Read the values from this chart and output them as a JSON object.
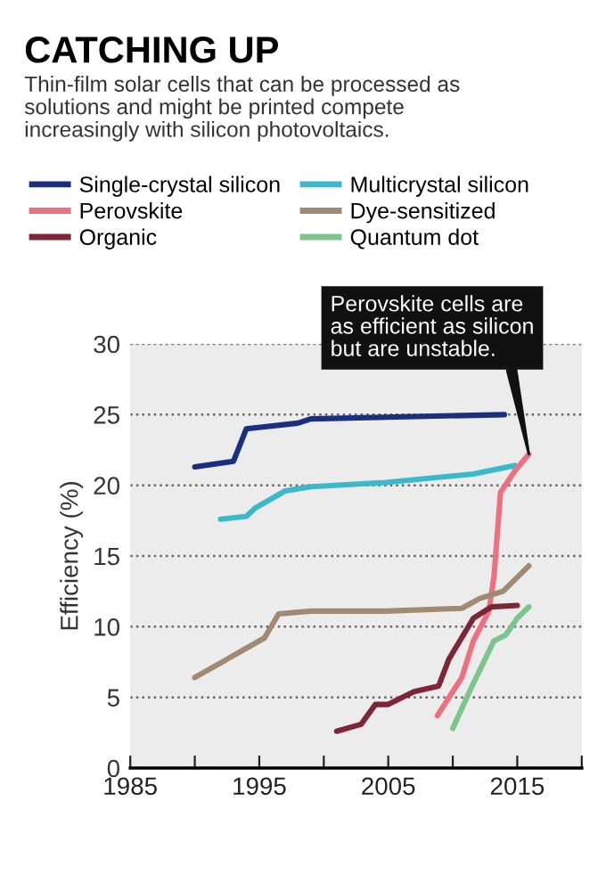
{
  "chart_data": {
    "type": "line",
    "title": "CATCHING UP",
    "subtitle": "Thin-film solar cells that can be processed as\nsolutions and might be printed compete\nincreasingly with silicon photovoltaics.",
    "ylabel": "Efficiency (%)",
    "xlim": [
      1985,
      2020
    ],
    "xticks": [
      1985,
      {
        "value": 1990,
        "label": null
      },
      1995,
      {
        "value": 2000,
        "label": null
      },
      2005,
      {
        "value": 2010,
        "label": null
      },
      2015,
      {
        "value": 2020,
        "label": null
      }
    ],
    "ylim": [
      0,
      30
    ],
    "yticks": [
      0,
      5,
      10,
      15,
      20,
      25,
      30
    ],
    "grid": "y",
    "legend": "top",
    "line_style": "solid",
    "marker": "none",
    "annotations": [
      {
        "text": "Perovskite cells are\nas efficient as silicon\nbut are unstable.",
        "x": 2015.9,
        "y": 22.2
      }
    ],
    "series": [
      {
        "name": "Single-crystal silicon",
        "color": "#1b2f7f",
        "x": [
          1990,
          1993,
          1994,
          1998,
          1999,
          2014
        ],
        "values": [
          21.3,
          21.7,
          24.0,
          24.4,
          24.7,
          25.0
        ]
      },
      {
        "name": "Multicrystal silicon",
        "color": "#3bb8c9",
        "x": [
          1992,
          1994,
          1994.7,
          1997,
          1999,
          2004.8,
          2011.6,
          2014.8
        ],
        "values": [
          17.6,
          17.8,
          18.4,
          19.6,
          19.9,
          20.2,
          20.8,
          21.4
        ]
      },
      {
        "name": "Perovskite",
        "color": "#ec7080",
        "x": [
          2008.8,
          2010.7,
          2011.6,
          2012.8,
          2013.2,
          2013.7,
          2014.8,
          2015.9
        ],
        "values": [
          3.7,
          6.4,
          9.0,
          11.1,
          13.6,
          19.5,
          21.0,
          22.2
        ]
      },
      {
        "name": "Dye-sensitized",
        "color": "#a08a74",
        "x": [
          1990,
          1995.4,
          1996.5,
          1999,
          2004.8,
          2010.7,
          2012.1,
          2013.9,
          2015.9
        ],
        "values": [
          6.4,
          9.2,
          10.9,
          11.1,
          11.1,
          11.3,
          12.0,
          12.5,
          14.3
        ]
      },
      {
        "name": "Organic",
        "color": "#7d2638",
        "x": [
          2001,
          2002.9,
          2004,
          2005,
          2007,
          2008.9,
          2009.7,
          2011.6,
          2013,
          2015
        ],
        "values": [
          2.6,
          3.1,
          4.5,
          4.5,
          5.4,
          5.8,
          7.7,
          10.6,
          11.4,
          11.5
        ]
      },
      {
        "name": "Quantum dot",
        "color": "#7cc68d",
        "x": [
          2010,
          2011.6,
          2013.2,
          2014.1,
          2015,
          2015.9
        ],
        "values": [
          2.8,
          6.0,
          9.0,
          9.4,
          10.6,
          11.4
        ]
      }
    ]
  }
}
